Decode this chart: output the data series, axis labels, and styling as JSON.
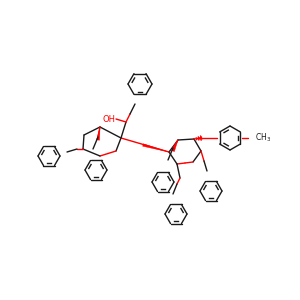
{
  "background": "#ffffff",
  "line_color": "#1a1a1a",
  "red_color": "#ff0000",
  "linewidth": 1.0,
  "figsize": [
    3.0,
    3.0
  ],
  "dpi": 100
}
